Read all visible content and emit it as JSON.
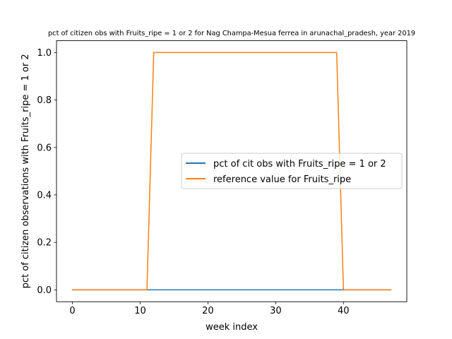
{
  "chart_data": {
    "type": "line",
    "title": "pct of citizen obs with Fruits_ripe = 1 or 2 for Nag Champa-Mesua ferrea in arunachal_pradesh, year 2019",
    "xlabel": "week index",
    "ylabel": "pct of citizen observations with Fruits_ripe = 1 or 2",
    "xlim": [
      -2.35,
      49.35
    ],
    "ylim": [
      -0.05,
      1.05
    ],
    "xticks": [
      0,
      10,
      20,
      30,
      40
    ],
    "yticks": [
      0.0,
      0.2,
      0.4,
      0.6,
      0.8,
      1.0
    ],
    "xtick_labels": [
      "0",
      "10",
      "20",
      "30",
      "40"
    ],
    "ytick_labels": [
      "0.0",
      "0.2",
      "0.4",
      "0.6",
      "0.8",
      "1.0"
    ],
    "grid": false,
    "legend_position": "center-right",
    "series": [
      {
        "name": "pct of cit obs with Fruits_ripe = 1 or 2",
        "color": "#1f77b4",
        "x": [
          0,
          1,
          2,
          3,
          4,
          5,
          6,
          7,
          8,
          9,
          10,
          11,
          12,
          13,
          14,
          15,
          16,
          17,
          18,
          19,
          20,
          21,
          22,
          23,
          24,
          25,
          26,
          27,
          28,
          29,
          30,
          31,
          32,
          33,
          34,
          35,
          36,
          37,
          38,
          39,
          40,
          41,
          42,
          43,
          44,
          45,
          46,
          47
        ],
        "y": [
          0,
          0,
          0,
          0,
          0,
          0,
          0,
          0,
          0,
          0,
          0,
          0,
          0,
          0,
          0,
          0,
          0,
          0,
          0,
          0,
          0,
          0,
          0,
          0,
          0,
          0,
          0,
          0,
          0,
          0,
          0,
          0,
          0,
          0,
          0,
          0,
          0,
          0,
          0,
          0,
          0,
          0,
          0,
          0,
          0,
          0,
          0,
          0
        ]
      },
      {
        "name": "reference value for Fruits_ripe",
        "color": "#ff7f0e",
        "x": [
          0,
          1,
          2,
          3,
          4,
          5,
          6,
          7,
          8,
          9,
          10,
          11,
          12,
          13,
          14,
          15,
          16,
          17,
          18,
          19,
          20,
          21,
          22,
          23,
          24,
          25,
          26,
          27,
          28,
          29,
          30,
          31,
          32,
          33,
          34,
          35,
          36,
          37,
          38,
          39,
          40,
          41,
          42,
          43,
          44,
          45,
          46,
          47
        ],
        "y": [
          0,
          0,
          0,
          0,
          0,
          0,
          0,
          0,
          0,
          0,
          0,
          0,
          1,
          1,
          1,
          1,
          1,
          1,
          1,
          1,
          1,
          1,
          1,
          1,
          1,
          1,
          1,
          1,
          1,
          1,
          1,
          1,
          1,
          1,
          1,
          1,
          1,
          1,
          1,
          1,
          0,
          0,
          0,
          0,
          0,
          0,
          0,
          0
        ]
      }
    ]
  }
}
